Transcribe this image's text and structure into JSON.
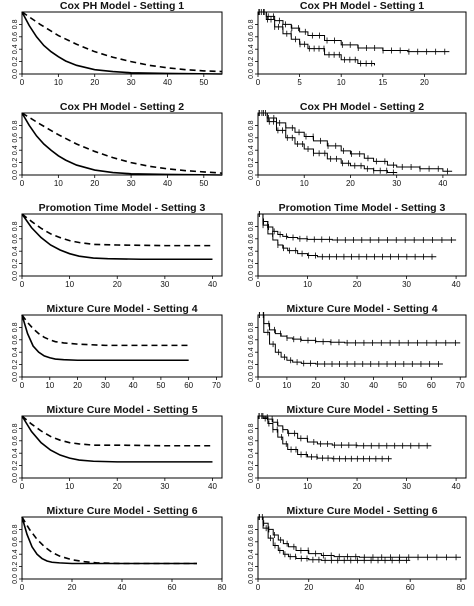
{
  "chart_data": [
    {
      "type": "line",
      "title": "Cox PH Model - Setting 1",
      "xlim": [
        0,
        55
      ],
      "ylim": [
        0,
        1
      ],
      "xticks": [
        0,
        10,
        20,
        30,
        40,
        50
      ],
      "yticks": [
        0,
        0.2,
        0.4,
        0.6,
        0.8
      ],
      "series": [
        {
          "style": "solid",
          "x": [
            0,
            2,
            4,
            6,
            8,
            10,
            12,
            15,
            20,
            25,
            30,
            40,
            55
          ],
          "y": [
            1.0,
            0.78,
            0.6,
            0.46,
            0.36,
            0.28,
            0.21,
            0.14,
            0.07,
            0.04,
            0.02,
            0.01,
            0.0
          ]
        },
        {
          "style": "dashed",
          "x": [
            0,
            5,
            10,
            15,
            20,
            25,
            30,
            35,
            40,
            45,
            50,
            55
          ],
          "y": [
            1.0,
            0.8,
            0.62,
            0.48,
            0.36,
            0.27,
            0.2,
            0.14,
            0.1,
            0.07,
            0.05,
            0.04
          ]
        }
      ]
    },
    {
      "type": "line",
      "title": "Cox PH Model - Setting 1",
      "xlim": [
        0,
        25
      ],
      "ylim": [
        0,
        1
      ],
      "xticks": [
        0,
        5,
        10,
        15,
        20
      ],
      "yticks": [
        0,
        0.2,
        0.4,
        0.6,
        0.8
      ],
      "series": [
        {
          "style": "km",
          "x": [
            0,
            1,
            2,
            3,
            4,
            5,
            6,
            8,
            10,
            12,
            15,
            18,
            23
          ],
          "y": [
            1.0,
            0.93,
            0.86,
            0.8,
            0.74,
            0.68,
            0.62,
            0.54,
            0.47,
            0.42,
            0.38,
            0.36,
            0.36
          ]
        },
        {
          "style": "km",
          "x": [
            0,
            1,
            2,
            3,
            4,
            5,
            6,
            8,
            10,
            12,
            14
          ],
          "y": [
            1.0,
            0.88,
            0.76,
            0.65,
            0.56,
            0.48,
            0.41,
            0.31,
            0.23,
            0.17,
            0.14
          ]
        }
      ]
    },
    {
      "type": "line",
      "title": "Cox PH Model - Setting 2",
      "xlim": [
        0,
        55
      ],
      "ylim": [
        0,
        1
      ],
      "xticks": [
        0,
        10,
        20,
        30,
        40,
        50
      ],
      "yticks": [
        0,
        0.2,
        0.4,
        0.6,
        0.8
      ],
      "series": [
        {
          "style": "solid",
          "x": [
            0,
            2,
            4,
            6,
            8,
            10,
            12,
            15,
            20,
            25,
            30,
            40,
            55
          ],
          "y": [
            1.0,
            0.8,
            0.63,
            0.5,
            0.4,
            0.31,
            0.24,
            0.16,
            0.08,
            0.04,
            0.02,
            0.01,
            0.0
          ]
        },
        {
          "style": "dashed",
          "x": [
            0,
            5,
            10,
            15,
            20,
            25,
            30,
            35,
            40,
            45,
            50,
            55
          ],
          "y": [
            1.0,
            0.82,
            0.65,
            0.5,
            0.38,
            0.28,
            0.2,
            0.14,
            0.1,
            0.07,
            0.05,
            0.03
          ]
        }
      ]
    },
    {
      "type": "line",
      "title": "Cox PH Model - Setting 2",
      "xlim": [
        0,
        45
      ],
      "ylim": [
        0,
        1
      ],
      "xticks": [
        0,
        10,
        20,
        30,
        40
      ],
      "yticks": [
        0,
        0.2,
        0.4,
        0.6,
        0.8
      ],
      "series": [
        {
          "style": "km",
          "x": [
            0,
            2,
            4,
            6,
            8,
            10,
            12,
            15,
            18,
            20,
            23,
            25,
            28,
            30,
            35,
            40,
            42
          ],
          "y": [
            1.0,
            0.92,
            0.84,
            0.76,
            0.69,
            0.62,
            0.55,
            0.47,
            0.39,
            0.34,
            0.27,
            0.22,
            0.16,
            0.13,
            0.1,
            0.06,
            0.06
          ]
        },
        {
          "style": "km",
          "x": [
            0,
            2,
            4,
            6,
            8,
            10,
            12,
            15,
            18,
            20,
            23,
            25,
            28,
            30
          ],
          "y": [
            1.0,
            0.86,
            0.72,
            0.6,
            0.5,
            0.42,
            0.35,
            0.26,
            0.19,
            0.15,
            0.1,
            0.07,
            0.04,
            0.03
          ]
        }
      ]
    },
    {
      "type": "line",
      "title": "Promotion Time Model - Setting 3",
      "xlim": [
        0,
        42
      ],
      "ylim": [
        0,
        1
      ],
      "xticks": [
        0,
        10,
        20,
        30,
        40
      ],
      "yticks": [
        0,
        0.2,
        0.4,
        0.6,
        0.8
      ],
      "series": [
        {
          "style": "solid",
          "x": [
            0,
            2,
            4,
            6,
            8,
            10,
            12,
            15,
            18,
            25,
            30,
            40
          ],
          "y": [
            1.0,
            0.78,
            0.62,
            0.5,
            0.42,
            0.36,
            0.32,
            0.29,
            0.28,
            0.27,
            0.27,
            0.27
          ]
        },
        {
          "style": "dashed",
          "x": [
            0,
            2,
            4,
            6,
            8,
            10,
            12,
            15,
            20,
            30,
            40
          ],
          "y": [
            1.0,
            0.88,
            0.77,
            0.68,
            0.62,
            0.57,
            0.54,
            0.51,
            0.5,
            0.49,
            0.49
          ]
        }
      ]
    },
    {
      "type": "line",
      "title": "Promotion Time Model - Setting 3",
      "xlim": [
        0,
        42
      ],
      "ylim": [
        0,
        1
      ],
      "xticks": [
        0,
        10,
        20,
        30,
        40
      ],
      "yticks": [
        0,
        0.2,
        0.4,
        0.6,
        0.8
      ],
      "series": [
        {
          "style": "km",
          "x": [
            0,
            1,
            2,
            3,
            4,
            5,
            6,
            8,
            10,
            15,
            20,
            30,
            40
          ],
          "y": [
            1.0,
            0.88,
            0.79,
            0.72,
            0.67,
            0.64,
            0.62,
            0.6,
            0.59,
            0.58,
            0.58,
            0.58,
            0.58
          ]
        },
        {
          "style": "km",
          "x": [
            0,
            1,
            2,
            3,
            4,
            5,
            6,
            8,
            10,
            12,
            15,
            20,
            30,
            36
          ],
          "y": [
            1.0,
            0.82,
            0.68,
            0.58,
            0.5,
            0.45,
            0.41,
            0.36,
            0.33,
            0.31,
            0.31,
            0.31,
            0.31,
            0.31
          ]
        }
      ]
    },
    {
      "type": "line",
      "title": "Mixture Cure Model - Setting 4",
      "xlim": [
        0,
        72
      ],
      "ylim": [
        0,
        1
      ],
      "xticks": [
        0,
        10,
        20,
        30,
        40,
        50,
        60,
        70
      ],
      "yticks": [
        0,
        0.2,
        0.4,
        0.6,
        0.8
      ],
      "series": [
        {
          "style": "solid",
          "x": [
            0,
            2,
            4,
            6,
            8,
            10,
            12,
            15,
            20,
            30,
            40,
            60
          ],
          "y": [
            1.0,
            0.7,
            0.5,
            0.4,
            0.34,
            0.31,
            0.29,
            0.28,
            0.27,
            0.27,
            0.27,
            0.27
          ]
        },
        {
          "style": "dashed",
          "x": [
            0,
            2,
            4,
            6,
            8,
            10,
            12,
            15,
            20,
            25,
            30,
            40,
            60
          ],
          "y": [
            1.0,
            0.88,
            0.78,
            0.7,
            0.64,
            0.6,
            0.57,
            0.55,
            0.53,
            0.52,
            0.51,
            0.51,
            0.51
          ]
        }
      ]
    },
    {
      "type": "line",
      "title": "Mixture Cure Model - Setting 4",
      "xlim": [
        0,
        72
      ],
      "ylim": [
        0,
        1
      ],
      "xticks": [
        0,
        10,
        20,
        30,
        40,
        50,
        60,
        70
      ],
      "yticks": [
        0,
        0.2,
        0.4,
        0.6,
        0.8
      ],
      "series": [
        {
          "style": "km",
          "x": [
            0,
            2,
            4,
            6,
            8,
            10,
            12,
            15,
            20,
            25,
            30,
            40,
            50,
            60,
            70
          ],
          "y": [
            1.0,
            0.86,
            0.76,
            0.7,
            0.66,
            0.63,
            0.61,
            0.59,
            0.57,
            0.56,
            0.55,
            0.55,
            0.55,
            0.55,
            0.55
          ]
        },
        {
          "style": "km",
          "x": [
            0,
            2,
            4,
            6,
            8,
            10,
            12,
            15,
            20,
            25,
            30,
            40,
            50,
            64
          ],
          "y": [
            1.0,
            0.72,
            0.53,
            0.4,
            0.32,
            0.27,
            0.24,
            0.22,
            0.21,
            0.21,
            0.21,
            0.21,
            0.21,
            0.21
          ]
        }
      ]
    },
    {
      "type": "line",
      "title": "Mixture Cure Model - Setting 5",
      "xlim": [
        0,
        42
      ],
      "ylim": [
        0,
        1
      ],
      "xticks": [
        0,
        10,
        20,
        30,
        40
      ],
      "yticks": [
        0,
        0.2,
        0.4,
        0.6,
        0.8
      ],
      "series": [
        {
          "style": "solid",
          "x": [
            0,
            2,
            4,
            6,
            8,
            10,
            12,
            15,
            20,
            30,
            40
          ],
          "y": [
            1.0,
            0.75,
            0.57,
            0.45,
            0.37,
            0.32,
            0.29,
            0.27,
            0.26,
            0.26,
            0.26
          ]
        },
        {
          "style": "dashed",
          "x": [
            0,
            2,
            4,
            6,
            8,
            10,
            12,
            15,
            20,
            30,
            40
          ],
          "y": [
            1.0,
            0.87,
            0.76,
            0.67,
            0.61,
            0.57,
            0.55,
            0.53,
            0.53,
            0.52,
            0.52
          ]
        }
      ]
    },
    {
      "type": "line",
      "title": "Mixture Cure Model - Setting 5",
      "xlim": [
        0,
        42
      ],
      "ylim": [
        0,
        1
      ],
      "xticks": [
        0,
        10,
        20,
        30,
        40
      ],
      "yticks": [
        0,
        0.2,
        0.4,
        0.6,
        0.8
      ],
      "series": [
        {
          "style": "km",
          "x": [
            0,
            1,
            2,
            3,
            4,
            5,
            6,
            8,
            10,
            12,
            15,
            20,
            30,
            35
          ],
          "y": [
            1.0,
            0.98,
            0.95,
            0.9,
            0.84,
            0.78,
            0.72,
            0.64,
            0.58,
            0.55,
            0.53,
            0.52,
            0.52,
            0.52
          ]
        },
        {
          "style": "km",
          "x": [
            0,
            1,
            2,
            3,
            4,
            5,
            6,
            8,
            10,
            12,
            15,
            20,
            27
          ],
          "y": [
            1.0,
            0.96,
            0.88,
            0.78,
            0.66,
            0.55,
            0.46,
            0.38,
            0.34,
            0.32,
            0.31,
            0.31,
            0.31
          ]
        }
      ]
    },
    {
      "type": "line",
      "title": "Mixture Cure Model - Setting 6",
      "xlim": [
        0,
        80
      ],
      "ylim": [
        0,
        1
      ],
      "xticks": [
        0,
        20,
        40,
        60,
        80
      ],
      "yticks": [
        0,
        0.2,
        0.4,
        0.6,
        0.8
      ],
      "series": [
        {
          "style": "solid",
          "x": [
            0,
            2,
            4,
            6,
            8,
            10,
            12,
            15,
            20,
            30,
            40,
            60,
            70
          ],
          "y": [
            1.0,
            0.72,
            0.52,
            0.4,
            0.33,
            0.29,
            0.27,
            0.26,
            0.25,
            0.25,
            0.25,
            0.25,
            0.25
          ]
        },
        {
          "style": "dashed",
          "x": [
            0,
            3,
            6,
            9,
            12,
            15,
            20,
            25,
            30,
            40,
            50,
            70
          ],
          "y": [
            1.0,
            0.8,
            0.64,
            0.52,
            0.43,
            0.37,
            0.31,
            0.28,
            0.26,
            0.25,
            0.25,
            0.25
          ]
        }
      ]
    },
    {
      "type": "line",
      "title": "Mixture Cure Model - Setting 6",
      "xlim": [
        0,
        82
      ],
      "ylim": [
        0,
        1
      ],
      "xticks": [
        0,
        20,
        40,
        60,
        80
      ],
      "yticks": [
        0,
        0.2,
        0.4,
        0.6,
        0.8
      ],
      "series": [
        {
          "style": "km",
          "x": [
            0,
            2,
            4,
            6,
            8,
            10,
            12,
            15,
            20,
            25,
            30,
            40,
            50,
            60,
            80
          ],
          "y": [
            1.0,
            0.9,
            0.8,
            0.71,
            0.63,
            0.57,
            0.52,
            0.46,
            0.41,
            0.38,
            0.36,
            0.35,
            0.35,
            0.35,
            0.35
          ]
        },
        {
          "style": "km",
          "x": [
            0,
            2,
            4,
            6,
            8,
            10,
            12,
            15,
            20,
            25,
            30,
            40,
            50,
            60
          ],
          "y": [
            1.0,
            0.82,
            0.66,
            0.54,
            0.46,
            0.4,
            0.36,
            0.33,
            0.31,
            0.3,
            0.3,
            0.3,
            0.3,
            0.3
          ]
        }
      ]
    }
  ]
}
